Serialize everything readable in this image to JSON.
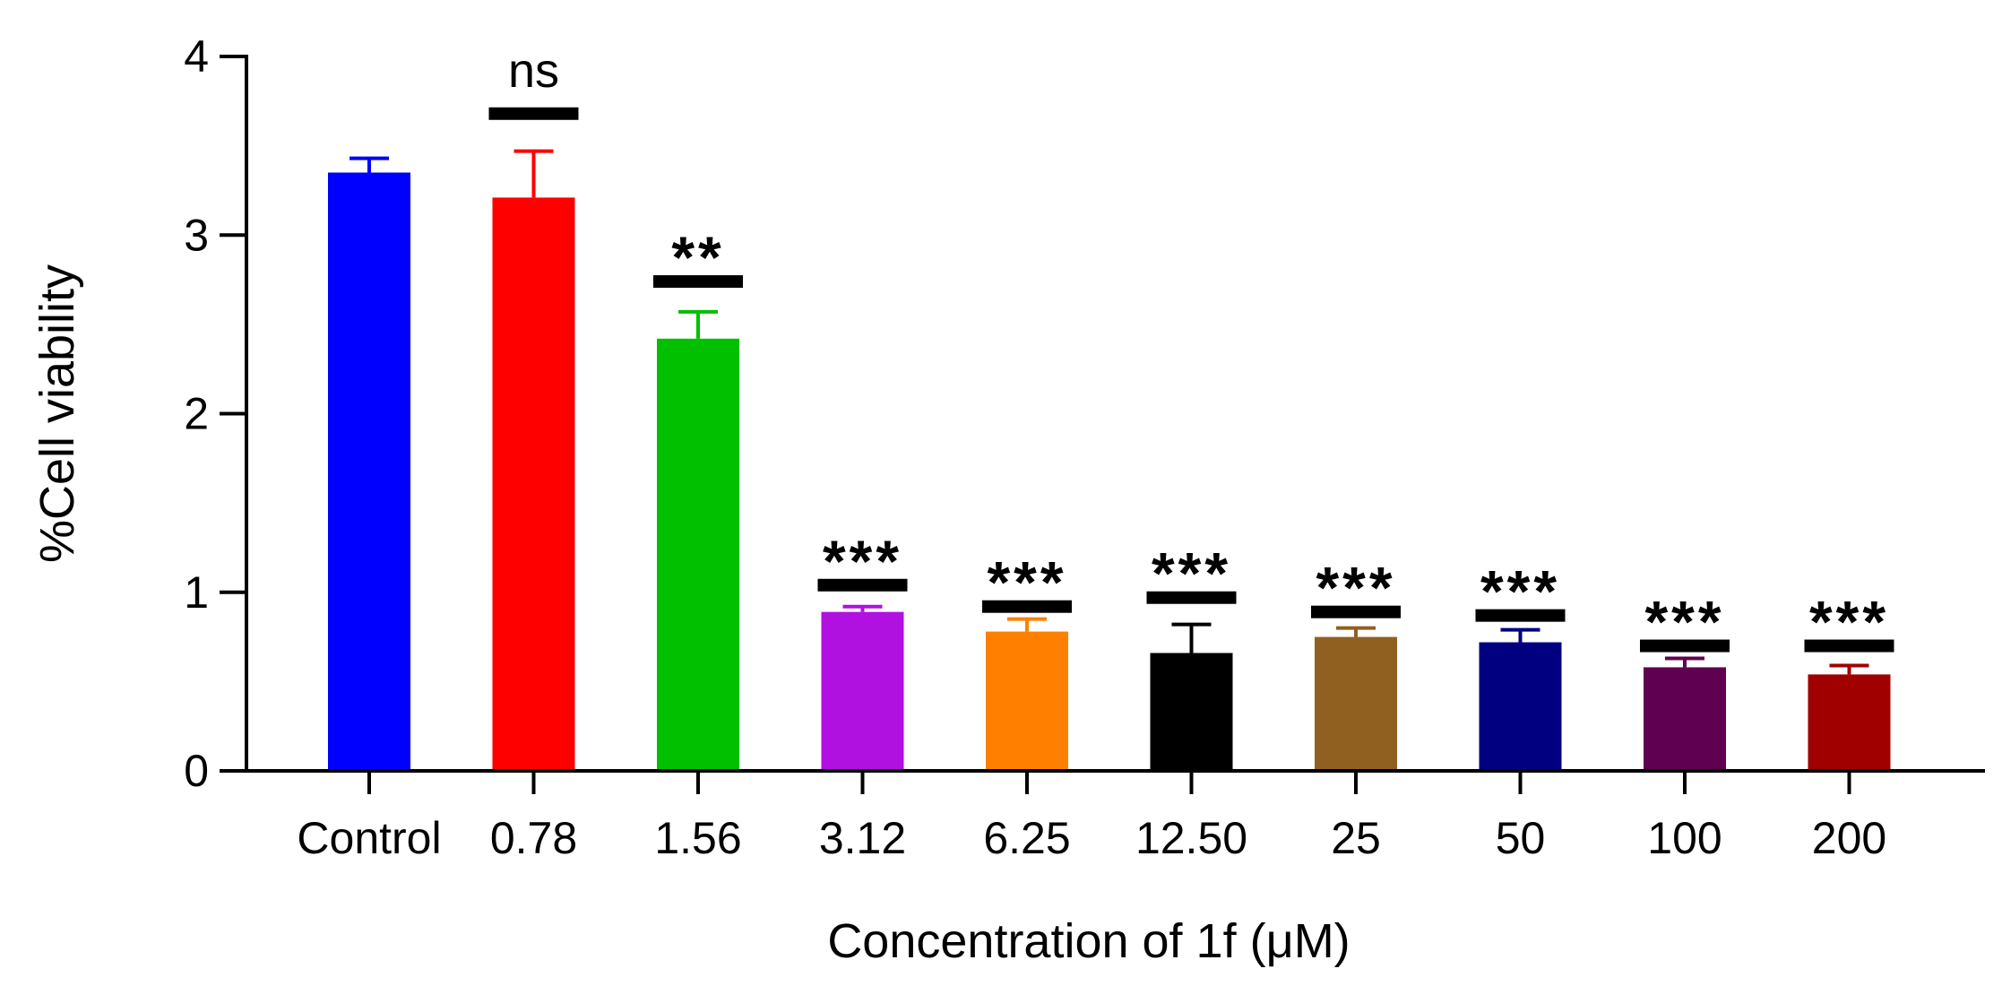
{
  "chart_data": {
    "type": "bar",
    "xlabel": "Concentration of 1f (μM)",
    "ylabel": "%Cell viability",
    "ylim": [
      0,
      4
    ],
    "yticks": [
      "0",
      "1",
      "2",
      "3",
      "4"
    ],
    "grid": false,
    "categories": [
      "Control",
      "0.78",
      "1.56",
      "3.12",
      "6.25",
      "12.50",
      "25",
      "50",
      "100",
      "200"
    ],
    "values": [
      3.35,
      3.21,
      2.42,
      0.89,
      0.78,
      0.66,
      0.75,
      0.72,
      0.58,
      0.54
    ],
    "errors": [
      0.08,
      0.26,
      0.15,
      0.03,
      0.07,
      0.16,
      0.05,
      0.07,
      0.05,
      0.05
    ],
    "colors": [
      "#0000ff",
      "#ff0000",
      "#00c000",
      "#b010e0",
      "#ff8000",
      "#000000",
      "#906020",
      "#000080",
      "#600050",
      "#a00000"
    ],
    "significance": [
      "",
      "ns",
      "**",
      "***",
      "***",
      "***",
      "***",
      "***",
      "***",
      "***"
    ],
    "significance_bar_levels": [
      null,
      3.68,
      2.74,
      1.04,
      0.92,
      0.97,
      0.89,
      0.87,
      0.7,
      0.7
    ]
  }
}
